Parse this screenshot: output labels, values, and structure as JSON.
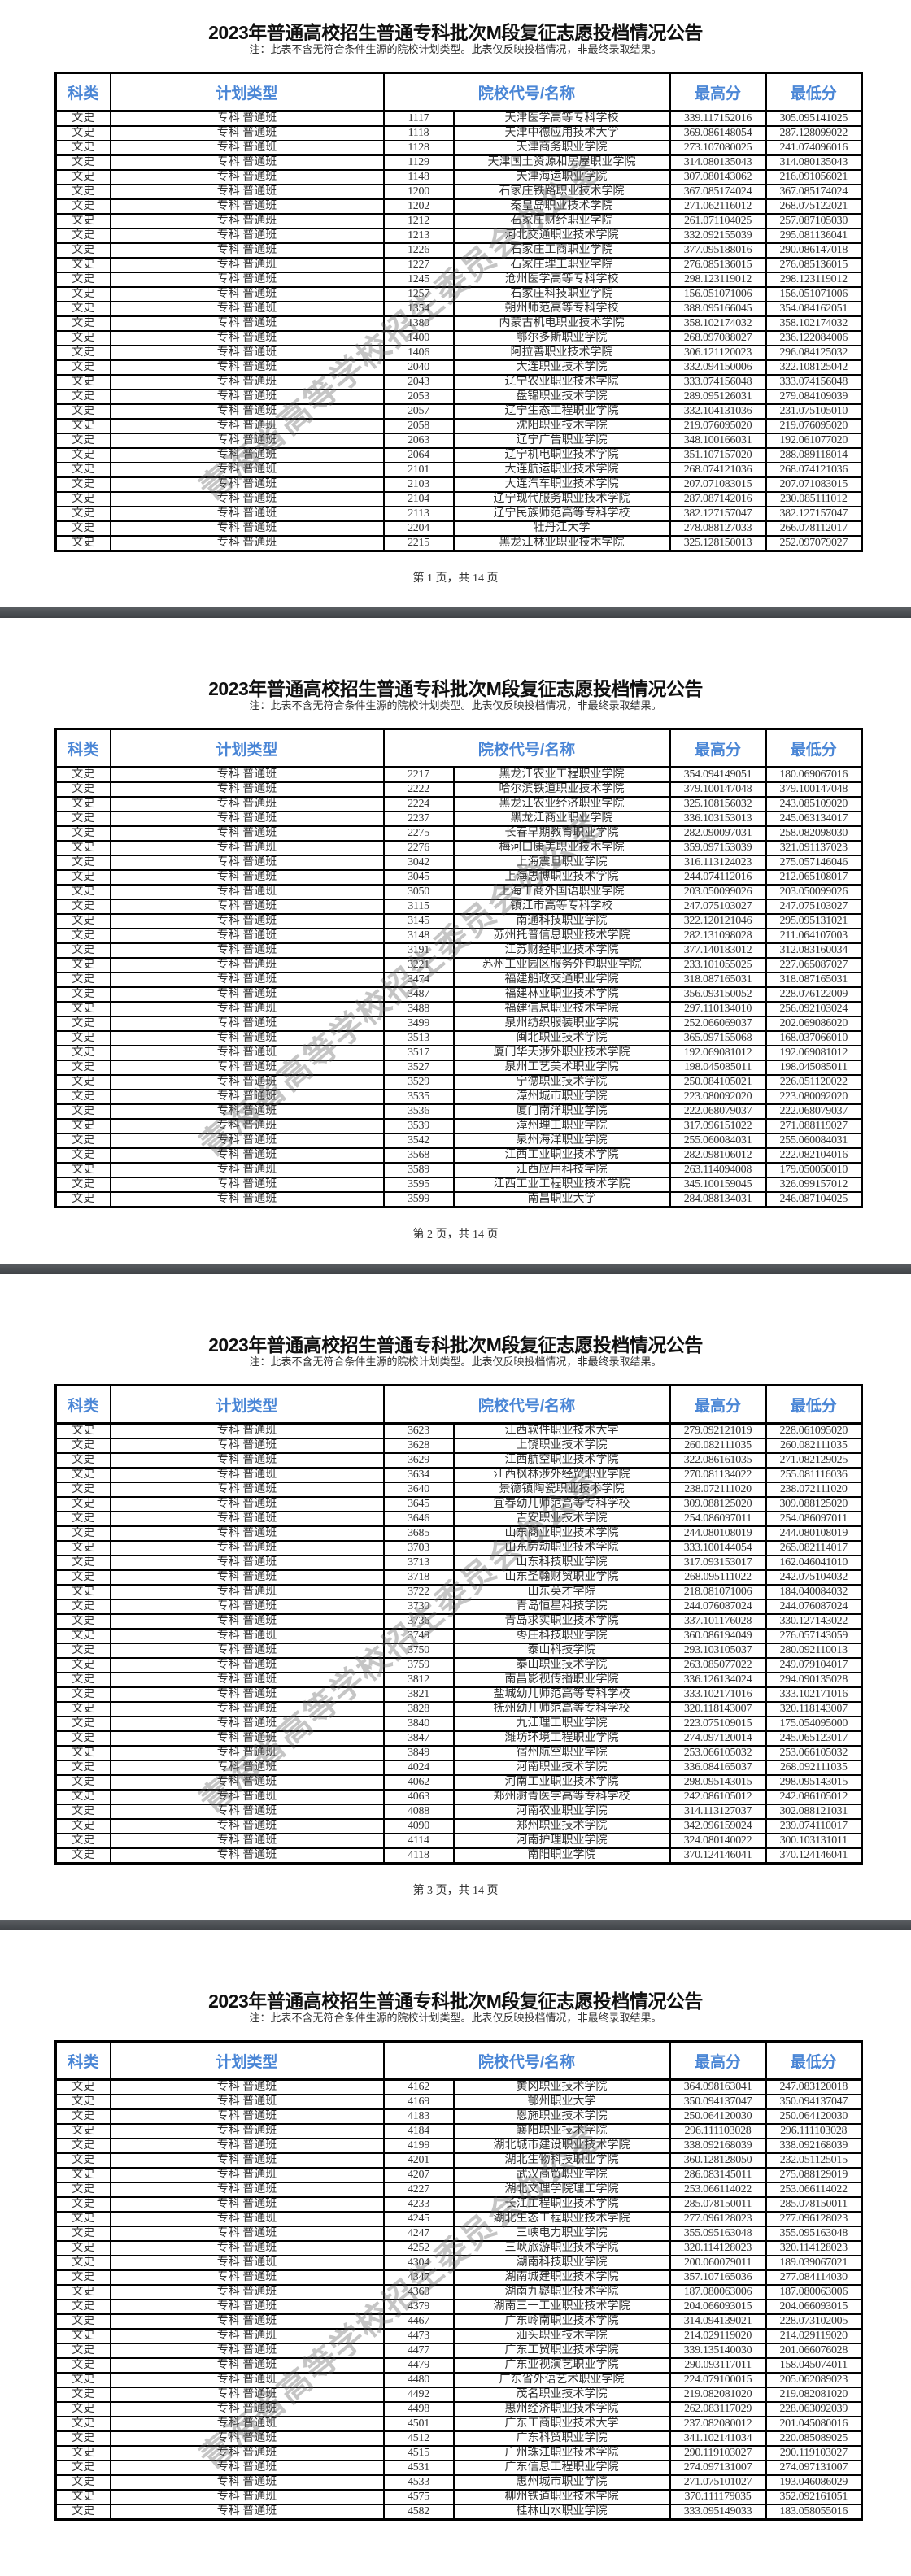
{
  "document": {
    "title": "2023年普通高校招生普通专科批次M段复征志愿投档情况公告",
    "note": "注：此表不含无符合条件生源的院校计划类型。此表仅反映投档情况，非最终录取结果。",
    "watermark": "青海省高等学校招生委员会办公室",
    "header_color": "#4a86d6",
    "columns": [
      "科类",
      "计划类型",
      "院校代号/名称",
      "最高分",
      "最低分"
    ]
  },
  "pages": [
    {
      "footer": "第 1 页，共 14 页",
      "rows": [
        [
          "文史",
          "专科 普通班",
          "1117",
          "天津医学高等专科学校",
          "339.117152016",
          "305.095141025"
        ],
        [
          "文史",
          "专科 普通班",
          "1118",
          "天津中德应用技术大学",
          "369.086148054",
          "287.128099022"
        ],
        [
          "文史",
          "专科 普通班",
          "1128",
          "天津商务职业学院",
          "273.107080025",
          "241.074096016"
        ],
        [
          "文史",
          "专科 普通班",
          "1129",
          "天津国土资源和房屋职业学院",
          "314.080135043",
          "314.080135043"
        ],
        [
          "文史",
          "专科 普通班",
          "1148",
          "天津海运职业学院",
          "307.080143062",
          "216.091056021"
        ],
        [
          "文史",
          "专科 普通班",
          "1200",
          "石家庄铁路职业技术学院",
          "367.085174024",
          "367.085174024"
        ],
        [
          "文史",
          "专科 普通班",
          "1202",
          "秦皇岛职业技术学院",
          "271.062116012",
          "268.075122021"
        ],
        [
          "文史",
          "专科 普通班",
          "1212",
          "石家庄财经职业学院",
          "261.071104025",
          "257.087105030"
        ],
        [
          "文史",
          "专科 普通班",
          "1213",
          "河北交通职业技术学院",
          "332.092155039",
          "295.081136041"
        ],
        [
          "文史",
          "专科 普通班",
          "1226",
          "石家庄工商职业学院",
          "377.095188016",
          "290.086147018"
        ],
        [
          "文史",
          "专科 普通班",
          "1227",
          "石家庄理工职业学院",
          "276.085136015",
          "276.085136015"
        ],
        [
          "文史",
          "专科 普通班",
          "1245",
          "沧州医学高等专科学校",
          "298.123119012",
          "298.123119012"
        ],
        [
          "文史",
          "专科 普通班",
          "1257",
          "石家庄科技职业学院",
          "156.051071006",
          "156.051071006"
        ],
        [
          "文史",
          "专科 普通班",
          "1354",
          "朔州师范高等专科学校",
          "388.095166045",
          "354.084162051"
        ],
        [
          "文史",
          "专科 普通班",
          "1380",
          "内蒙古机电职业技术学院",
          "358.102174032",
          "358.102174032"
        ],
        [
          "文史",
          "专科 普通班",
          "1400",
          "鄂尔多斯职业学院",
          "268.097088027",
          "236.122084006"
        ],
        [
          "文史",
          "专科 普通班",
          "1406",
          "阿拉善职业技术学院",
          "306.121120023",
          "296.084125032"
        ],
        [
          "文史",
          "专科 普通班",
          "2040",
          "大连职业技术学院",
          "332.094150006",
          "322.108125042"
        ],
        [
          "文史",
          "专科 普通班",
          "2043",
          "辽宁农业职业技术学院",
          "333.074156048",
          "333.074156048"
        ],
        [
          "文史",
          "专科 普通班",
          "2053",
          "盘锦职业技术学院",
          "289.095126031",
          "279.084109039"
        ],
        [
          "文史",
          "专科 普通班",
          "2057",
          "辽宁生态工程职业学院",
          "332.104131036",
          "231.075105010"
        ],
        [
          "文史",
          "专科 普通班",
          "2058",
          "沈阳职业技术学院",
          "219.076095020",
          "219.076095020"
        ],
        [
          "文史",
          "专科 普通班",
          "2063",
          "辽宁广告职业学院",
          "348.100166031",
          "192.061077020"
        ],
        [
          "文史",
          "专科 普通班",
          "2064",
          "辽宁机电职业技术学院",
          "351.107157020",
          "288.089118014"
        ],
        [
          "文史",
          "专科 普通班",
          "2101",
          "大连航运职业技术学院",
          "268.074121036",
          "268.074121036"
        ],
        [
          "文史",
          "专科 普通班",
          "2103",
          "大连汽车职业技术学院",
          "207.071083015",
          "207.071083015"
        ],
        [
          "文史",
          "专科 普通班",
          "2104",
          "辽宁现代服务职业技术学院",
          "287.087142016",
          "230.085111012"
        ],
        [
          "文史",
          "专科 普通班",
          "2113",
          "辽宁民族师范高等专科学校",
          "382.127157047",
          "382.127157047"
        ],
        [
          "文史",
          "专科 普通班",
          "2204",
          "牡丹江大学",
          "278.088127033",
          "266.078112017"
        ],
        [
          "文史",
          "专科 普通班",
          "2215",
          "黑龙江林业职业技术学院",
          "325.128150013",
          "252.097079027"
        ]
      ]
    },
    {
      "footer": "第 2 页，共 14 页",
      "rows": [
        [
          "文史",
          "专科 普通班",
          "2217",
          "黑龙江农业工程职业学院",
          "354.094149051",
          "180.069067016"
        ],
        [
          "文史",
          "专科 普通班",
          "2222",
          "哈尔滨铁道职业技术学院",
          "379.100147048",
          "379.100147048"
        ],
        [
          "文史",
          "专科 普通班",
          "2224",
          "黑龙江农业经济职业学院",
          "325.108156032",
          "243.085109020"
        ],
        [
          "文史",
          "专科 普通班",
          "2237",
          "黑龙江商业职业学院",
          "336.103153013",
          "245.063134017"
        ],
        [
          "文史",
          "专科 普通班",
          "2275",
          "长春早期教育职业学院",
          "282.090097031",
          "258.082098030"
        ],
        [
          "文史",
          "专科 普通班",
          "2276",
          "梅河口康美职业技术学院",
          "359.097153039",
          "321.091137023"
        ],
        [
          "文史",
          "专科 普通班",
          "3042",
          "上海震旦职业学院",
          "316.113124023",
          "275.057146046"
        ],
        [
          "文史",
          "专科 普通班",
          "3045",
          "上海思博职业技术学院",
          "244.074112016",
          "212.065108017"
        ],
        [
          "文史",
          "专科 普通班",
          "3050",
          "上海工商外国语职业学院",
          "203.050099026",
          "203.050099026"
        ],
        [
          "文史",
          "专科 普通班",
          "3115",
          "镇江市高等专科学校",
          "247.075103027",
          "247.075103027"
        ],
        [
          "文史",
          "专科 普通班",
          "3145",
          "南通科技职业学院",
          "322.120121046",
          "295.095131021"
        ],
        [
          "文史",
          "专科 普通班",
          "3148",
          "苏州托普信息职业技术学院",
          "282.131098028",
          "211.064107003"
        ],
        [
          "文史",
          "专科 普通班",
          "3191",
          "江苏财经职业技术学院",
          "377.140183012",
          "312.083160034"
        ],
        [
          "文史",
          "专科 普通班",
          "3221",
          "苏州工业园区服务外包职业学院",
          "233.101055025",
          "227.065087027"
        ],
        [
          "文史",
          "专科 普通班",
          "3474",
          "福建船政交通职业学院",
          "318.087165031",
          "318.087165031"
        ],
        [
          "文史",
          "专科 普通班",
          "3487",
          "福建林业职业技术学院",
          "356.093150052",
          "228.076122009"
        ],
        [
          "文史",
          "专科 普通班",
          "3488",
          "福建信息职业技术学院",
          "297.110134010",
          "256.092103024"
        ],
        [
          "文史",
          "专科 普通班",
          "3499",
          "泉州纺织服装职业学院",
          "252.066069037",
          "202.069086020"
        ],
        [
          "文史",
          "专科 普通班",
          "3513",
          "闽北职业技术学院",
          "365.097155068",
          "168.037066010"
        ],
        [
          "文史",
          "专科 普通班",
          "3517",
          "厦门华天涉外职业技术学院",
          "192.069081012",
          "192.069081012"
        ],
        [
          "文史",
          "专科 普通班",
          "3527",
          "泉州工艺美术职业学院",
          "198.045085011",
          "198.045085011"
        ],
        [
          "文史",
          "专科 普通班",
          "3529",
          "宁德职业技术学院",
          "250.084105021",
          "226.051120022"
        ],
        [
          "文史",
          "专科 普通班",
          "3535",
          "漳州城市职业学院",
          "223.080092020",
          "223.080092020"
        ],
        [
          "文史",
          "专科 普通班",
          "3536",
          "厦门南洋职业学院",
          "222.068079037",
          "222.068079037"
        ],
        [
          "文史",
          "专科 普通班",
          "3539",
          "漳州理工职业学院",
          "317.096151022",
          "271.088119027"
        ],
        [
          "文史",
          "专科 普通班",
          "3542",
          "泉州海洋职业学院",
          "255.060084031",
          "255.060084031"
        ],
        [
          "文史",
          "专科 普通班",
          "3568",
          "江西工业职业技术学院",
          "282.098106012",
          "222.082104016"
        ],
        [
          "文史",
          "专科 普通班",
          "3589",
          "江西应用科技学院",
          "263.114094008",
          "179.050050010"
        ],
        [
          "文史",
          "专科 普通班",
          "3595",
          "江西工业工程职业技术学院",
          "345.100159045",
          "326.099157012"
        ],
        [
          "文史",
          "专科 普通班",
          "3599",
          "南昌职业大学",
          "284.088134031",
          "246.087104025"
        ]
      ]
    },
    {
      "footer": "第 3 页，共 14 页",
      "rows": [
        [
          "文史",
          "专科 普通班",
          "3623",
          "江西软件职业技术大学",
          "279.092121019",
          "228.061095020"
        ],
        [
          "文史",
          "专科 普通班",
          "3628",
          "上饶职业技术学院",
          "260.082111035",
          "260.082111035"
        ],
        [
          "文史",
          "专科 普通班",
          "3629",
          "江西航空职业技术学院",
          "322.086161035",
          "271.082129025"
        ],
        [
          "文史",
          "专科 普通班",
          "3634",
          "江西枫林涉外经贸职业学院",
          "270.081134022",
          "255.081116036"
        ],
        [
          "文史",
          "专科 普通班",
          "3640",
          "景德镇陶瓷职业技术学院",
          "238.072111020",
          "238.072111020"
        ],
        [
          "文史",
          "专科 普通班",
          "3645",
          "宜春幼儿师范高等专科学校",
          "309.088125020",
          "309.088125020"
        ],
        [
          "文史",
          "专科 普通班",
          "3646",
          "吉安职业技术学院",
          "254.086097011",
          "254.086097011"
        ],
        [
          "文史",
          "专科 普通班",
          "3685",
          "山东商业职业技术学院",
          "244.080108019",
          "244.080108019"
        ],
        [
          "文史",
          "专科 普通班",
          "3703",
          "山东劳动职业技术学院",
          "333.100144054",
          "265.082114017"
        ],
        [
          "文史",
          "专科 普通班",
          "3713",
          "山东科技职业学院",
          "317.093153017",
          "162.046041010"
        ],
        [
          "文史",
          "专科 普通班",
          "3718",
          "山东圣翰财贸职业学院",
          "268.095111022",
          "242.075104032"
        ],
        [
          "文史",
          "专科 普通班",
          "3722",
          "山东英才学院",
          "218.081071006",
          "184.040084032"
        ],
        [
          "文史",
          "专科 普通班",
          "3730",
          "青岛恒星科技学院",
          "244.076087024",
          "244.076087024"
        ],
        [
          "文史",
          "专科 普通班",
          "3736",
          "青岛求实职业技术学院",
          "337.101176028",
          "330.127143022"
        ],
        [
          "文史",
          "专科 普通班",
          "3749",
          "枣庄科技职业学院",
          "360.086194049",
          "276.057143059"
        ],
        [
          "文史",
          "专科 普通班",
          "3750",
          "泰山科技学院",
          "293.103105037",
          "280.092110013"
        ],
        [
          "文史",
          "专科 普通班",
          "3759",
          "泰山职业技术学院",
          "263.085077022",
          "249.079104017"
        ],
        [
          "文史",
          "专科 普通班",
          "3812",
          "南昌影视传播职业学院",
          "336.126134024",
          "294.090135028"
        ],
        [
          "文史",
          "专科 普通班",
          "3821",
          "盐城幼儿师范高等专科学校",
          "333.102171016",
          "333.102171016"
        ],
        [
          "文史",
          "专科 普通班",
          "3828",
          "抚州幼儿师范高等专科学校",
          "320.118143007",
          "320.118143007"
        ],
        [
          "文史",
          "专科 普通班",
          "3840",
          "九江理工职业学院",
          "223.075109015",
          "175.054095000"
        ],
        [
          "文史",
          "专科 普通班",
          "3847",
          "潍坊环境工程职业学院",
          "274.097120014",
          "245.065123017"
        ],
        [
          "文史",
          "专科 普通班",
          "3849",
          "宿州航空职业学院",
          "253.066105032",
          "253.066105032"
        ],
        [
          "文史",
          "专科 普通班",
          "4024",
          "河南职业技术学院",
          "336.084165037",
          "268.092111035"
        ],
        [
          "文史",
          "专科 普通班",
          "4062",
          "河南工业职业技术学院",
          "298.095143015",
          "298.095143015"
        ],
        [
          "文史",
          "专科 普通班",
          "4063",
          "郑州澍青医学高等专科学校",
          "242.086105012",
          "242.086105012"
        ],
        [
          "文史",
          "专科 普通班",
          "4088",
          "河南农业职业学院",
          "314.113127037",
          "302.088121031"
        ],
        [
          "文史",
          "专科 普通班",
          "4090",
          "郑州职业技术学院",
          "342.096159024",
          "239.074110017"
        ],
        [
          "文史",
          "专科 普通班",
          "4114",
          "河南护理职业学院",
          "324.080140022",
          "300.103131011"
        ],
        [
          "文史",
          "专科 普通班",
          "4118",
          "南阳职业学院",
          "370.124146041",
          "370.124146041"
        ]
      ]
    },
    {
      "rows": [
        [
          "文史",
          "专科 普通班",
          "4162",
          "黄冈职业技术学院",
          "364.098163041",
          "247.083120018"
        ],
        [
          "文史",
          "专科 普通班",
          "4169",
          "鄂州职业大学",
          "350.094137047",
          "350.094137047"
        ],
        [
          "文史",
          "专科 普通班",
          "4183",
          "恩施职业技术学院",
          "250.064120030",
          "250.064120030"
        ],
        [
          "文史",
          "专科 普通班",
          "4184",
          "襄阳职业技术学院",
          "296.111103028",
          "296.111103028"
        ],
        [
          "文史",
          "专科 普通班",
          "4199",
          "湖北城市建设职业技术学院",
          "338.092168039",
          "338.092168039"
        ],
        [
          "文史",
          "专科 普通班",
          "4201",
          "湖北生物科技职业学院",
          "360.128128050",
          "232.051125015"
        ],
        [
          "文史",
          "专科 普通班",
          "4207",
          "武汉商贸职业学院",
          "286.083145011",
          "275.088129019"
        ],
        [
          "文史",
          "专科 普通班",
          "4227",
          "湖北文理学院理工学院",
          "253.066114022",
          "253.066114022"
        ],
        [
          "文史",
          "专科 普通班",
          "4233",
          "长江工程职业技术学院",
          "285.078150011",
          "285.078150011"
        ],
        [
          "文史",
          "专科 普通班",
          "4245",
          "湖北生态工程职业技术学院",
          "277.096128023",
          "277.096128023"
        ],
        [
          "文史",
          "专科 普通班",
          "4247",
          "三峡电力职业学院",
          "355.095163048",
          "355.095163048"
        ],
        [
          "文史",
          "专科 普通班",
          "4252",
          "三峡旅游职业技术学院",
          "320.114128023",
          "320.114128023"
        ],
        [
          "文史",
          "专科 普通班",
          "4304",
          "湖南科技职业学院",
          "200.060079011",
          "189.039067021"
        ],
        [
          "文史",
          "专科 普通班",
          "4347",
          "湖南城建职业技术学院",
          "357.107165036",
          "277.084114030"
        ],
        [
          "文史",
          "专科 普通班",
          "4360",
          "湖南九嶷职业技术学院",
          "187.080063006",
          "187.080063006"
        ],
        [
          "文史",
          "专科 普通班",
          "4379",
          "湖南三一工业职业技术学院",
          "204.066093015",
          "204.066093015"
        ],
        [
          "文史",
          "专科 普通班",
          "4467",
          "广东岭南职业技术学院",
          "314.094139021",
          "228.073102005"
        ],
        [
          "文史",
          "专科 普通班",
          "4473",
          "汕头职业技术学院",
          "214.029119020",
          "214.029119020"
        ],
        [
          "文史",
          "专科 普通班",
          "4477",
          "广东工贸职业技术学院",
          "339.135140030",
          "201.066076028"
        ],
        [
          "文史",
          "专科 普通班",
          "4479",
          "广东亚视演艺职业学院",
          "290.093117011",
          "158.045074011"
        ],
        [
          "文史",
          "专科 普通班",
          "4480",
          "广东省外语艺术职业学院",
          "224.079100015",
          "205.062089023"
        ],
        [
          "文史",
          "专科 普通班",
          "4492",
          "茂名职业技术学院",
          "219.082081020",
          "219.082081020"
        ],
        [
          "文史",
          "专科 普通班",
          "4498",
          "惠州经济职业技术学院",
          "262.083117029",
          "228.063092039"
        ],
        [
          "文史",
          "专科 普通班",
          "4501",
          "广东工商职业技术大学",
          "237.082080012",
          "201.045080016"
        ],
        [
          "文史",
          "专科 普通班",
          "4512",
          "广东科贸职业学院",
          "341.102141034",
          "220.085089025"
        ],
        [
          "文史",
          "专科 普通班",
          "4515",
          "广州珠江职业技术学院",
          "290.119103027",
          "290.119103027"
        ],
        [
          "文史",
          "专科 普通班",
          "4531",
          "广东信息工程职业学院",
          "274.097131007",
          "274.097131007"
        ],
        [
          "文史",
          "专科 普通班",
          "4533",
          "惠州城市职业学院",
          "271.075101027",
          "193.046086029"
        ],
        [
          "文史",
          "专科 普通班",
          "4575",
          "柳州铁道职业技术学院",
          "370.111179035",
          "352.092161051"
        ],
        [
          "文史",
          "专科 普通班",
          "4582",
          "桂林山水职业学院",
          "333.095149033",
          "183.058055016"
        ]
      ]
    }
  ]
}
